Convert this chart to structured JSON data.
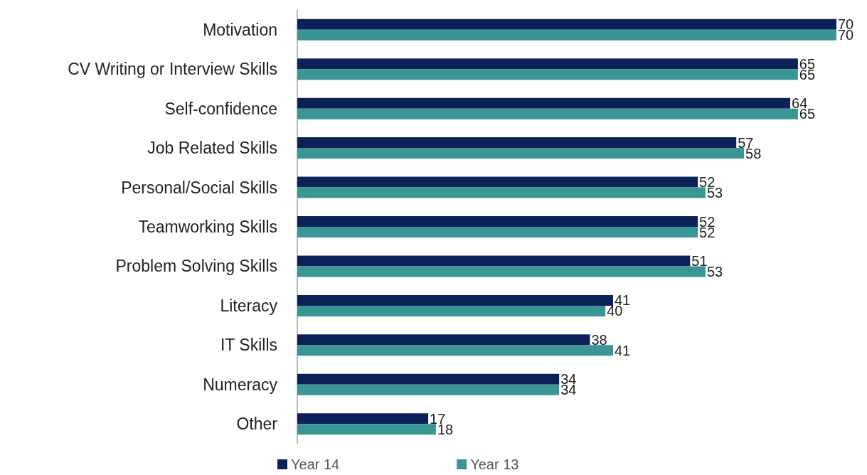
{
  "chart_data": {
    "type": "bar",
    "orientation": "horizontal",
    "categories": [
      "Motivation",
      "CV Writing or Interview Skills",
      "Self-confidence",
      "Job Related Skills",
      "Personal/Social Skills",
      "Teamworking Skills",
      "Problem Solving Skills",
      "Literacy",
      "IT Skills",
      "Numeracy",
      "Other"
    ],
    "series": [
      {
        "name": "Year 14",
        "color": "#0c2157",
        "values": [
          70,
          65,
          64,
          57,
          52,
          52,
          51,
          41,
          38,
          34,
          17
        ]
      },
      {
        "name": "Year 13",
        "color": "#3a9595",
        "values": [
          70,
          65,
          65,
          58,
          53,
          52,
          53,
          40,
          41,
          34,
          18
        ]
      }
    ],
    "data_labels": true,
    "legend": "bottom",
    "tick_labels": "y"
  }
}
